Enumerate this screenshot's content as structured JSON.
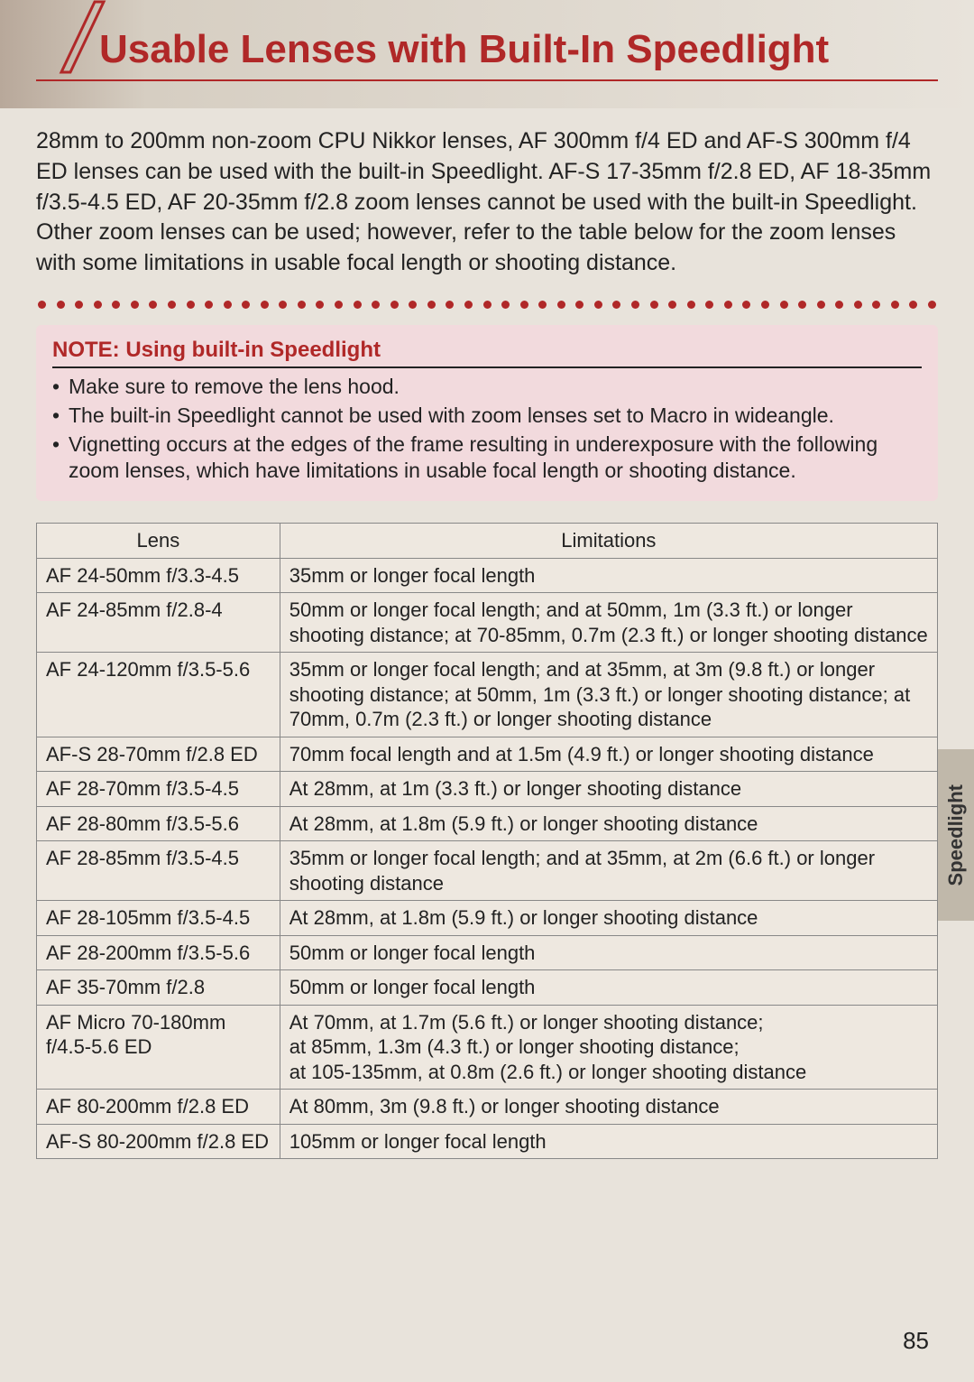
{
  "title": "Usable Lenses with Built-In Speedlight",
  "intro": "28mm to 200mm non-zoom CPU Nikkor lenses, AF 300mm f/4 ED and AF-S 300mm f/4 ED lenses can be used with the built-in Speedlight. AF-S 17-35mm f/2.8 ED, AF 18-35mm f/3.5-4.5 ED, AF 20-35mm f/2.8 zoom lenses cannot be used with the built-in Speedlight. Other zoom lenses can be used; however, refer to the table below for the zoom lenses with some limitations in usable focal length or shooting distance.",
  "note_title": "NOTE: Using built-in Speedlight",
  "note_items": [
    "Make sure to remove the lens hood.",
    "The built-in Speedlight cannot be used with zoom lenses set to Macro in wideangle.",
    "Vignetting occurs at the edges of the frame resulting in underexposure with the following zoom lenses, which have limitations in usable focal length or shooting distance."
  ],
  "table": {
    "columns": [
      "Lens",
      "Limitations"
    ],
    "rows": [
      [
        "AF 24-50mm f/3.3-4.5",
        "35mm or longer focal length"
      ],
      [
        "AF 24-85mm f/2.8-4",
        "50mm or longer focal length; and at 50mm, 1m (3.3 ft.) or longer shooting distance; at 70-85mm, 0.7m (2.3 ft.) or longer shooting distance"
      ],
      [
        "AF 24-120mm f/3.5-5.6",
        "35mm or longer focal length; and at 35mm, at 3m (9.8 ft.) or longer shooting distance; at 50mm, 1m (3.3 ft.) or longer shooting distance; at 70mm, 0.7m (2.3 ft.) or longer shooting distance"
      ],
      [
        "AF-S 28-70mm f/2.8 ED",
        "70mm focal length and at 1.5m (4.9 ft.) or longer shooting distance"
      ],
      [
        "AF 28-70mm f/3.5-4.5",
        "At 28mm, at 1m (3.3 ft.) or longer shooting distance"
      ],
      [
        "AF 28-80mm f/3.5-5.6",
        "At 28mm, at 1.8m (5.9 ft.) or longer shooting distance"
      ],
      [
        "AF 28-85mm f/3.5-4.5",
        "35mm or longer focal length; and at 35mm, at 2m (6.6 ft.) or longer shooting distance"
      ],
      [
        "AF 28-105mm f/3.5-4.5",
        "At 28mm, at 1.8m (5.9 ft.) or longer shooting distance"
      ],
      [
        "AF 28-200mm f/3.5-5.6",
        "50mm or longer focal length"
      ],
      [
        "AF 35-70mm f/2.8",
        "50mm or longer focal length"
      ],
      [
        "AF Micro 70-180mm f/4.5-5.6 ED",
        "At 70mm, at 1.7m (5.6 ft.) or longer shooting distance;\nat 85mm, 1.3m (4.3 ft.) or longer shooting distance;\nat 105-135mm, at 0.8m (2.6 ft.) or longer shooting distance"
      ],
      [
        "AF 80-200mm f/2.8 ED",
        "At 80mm, 3m (9.8 ft.) or longer shooting distance"
      ],
      [
        "AF-S 80-200mm f/2.8 ED",
        "105mm or longer focal length"
      ]
    ]
  },
  "side_tab": "Speedlight",
  "page_number": "85",
  "dot_count": 49,
  "colors": {
    "accent": "#b02828",
    "page_bg": "#e8e3db",
    "note_bg": "#f2dadd",
    "tab_bg": "#c0b8aa",
    "border": "#888888",
    "text": "#222222"
  }
}
